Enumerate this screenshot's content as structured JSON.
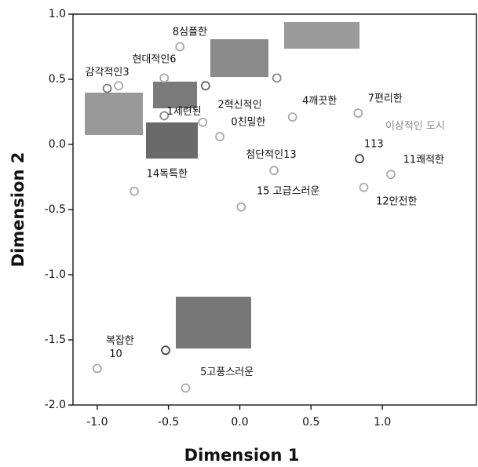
{
  "chart_data": {
    "type": "scatter",
    "x_label": "Dimension 1",
    "y_label": "Dimension 2",
    "xlim": [
      -1.17,
      1.66
    ],
    "ylim": [
      -2.0,
      1.0
    ],
    "xticks": [
      {
        "value": -1.0,
        "label": "-1.0"
      },
      {
        "value": -0.5,
        "label": "-0.5"
      },
      {
        "value": 0,
        "label": "0.0"
      },
      {
        "value": 0.5,
        "label": "0.5"
      },
      {
        "value": 1.0,
        "label": "1.0"
      }
    ],
    "yticks": [
      {
        "value": -2.0,
        "label": "-2.0"
      },
      {
        "value": -1.5,
        "label": "-1.5"
      },
      {
        "value": -1.0,
        "label": "-1.0"
      },
      {
        "value": -0.5,
        "label": "-0.5"
      },
      {
        "value": 0,
        "label": "0.0"
      },
      {
        "value": 0.5,
        "label": "0.5"
      },
      {
        "value": 1.0,
        "label": "1.0"
      }
    ],
    "x": [
      -0.42,
      -0.53,
      -0.93,
      -0.85,
      -0.24,
      0.26,
      -0.53,
      -0.26,
      -0.14,
      0.37,
      0.83,
      0.84,
      1.06,
      0.87,
      0.24,
      0.01,
      -0.74,
      -0.52,
      -1.0,
      -0.38
    ],
    "y": [
      0.75,
      0.51,
      0.43,
      0.45,
      0.45,
      0.51,
      0.22,
      0.17,
      0.06,
      0.21,
      0.24,
      -0.11,
      -0.23,
      -0.33,
      -0.2,
      -0.48,
      -0.36,
      -1.58,
      -1.72,
      -1.87
    ],
    "colors": [
      "#aaa",
      "#aaa",
      "#777",
      "#aaa",
      "#666",
      "#888",
      "#888",
      "#aaa",
      "#aaa",
      "#aaa",
      "#aaa",
      "#444",
      "#aaa",
      "#aaa",
      "#aaa",
      "#aaa",
      "#aaa",
      "#444",
      "#aaa",
      "#aaa"
    ],
    "annotations": [
      {
        "text": "8심플한",
        "x": -0.35,
        "y": 0.86
      },
      {
        "text": "현대적인6",
        "x": -0.6,
        "y": 0.65
      },
      {
        "text": "감각적인3",
        "x": -0.93,
        "y": 0.55
      },
      {
        "text": "2혁신적인",
        "x": 0.0,
        "y": 0.3
      },
      {
        "text": "1세련된",
        "x": -0.39,
        "y": 0.25
      },
      {
        "text": "0친밀한",
        "x": 0.06,
        "y": 0.17
      },
      {
        "text": "4깨끗한",
        "x": 0.56,
        "y": 0.33
      },
      {
        "text": "7편리한",
        "x": 1.02,
        "y": 0.35
      },
      {
        "text": "이상적인 도시",
        "x": 1.23,
        "y": 0.14,
        "color": "#888"
      },
      {
        "text": "113",
        "x": 0.94,
        "y": 0.0
      },
      {
        "text": "11쾌적한",
        "x": 1.29,
        "y": -0.12
      },
      {
        "text": "12안전한",
        "x": 1.1,
        "y": -0.44
      },
      {
        "text": "첨단적인13",
        "x": 0.22,
        "y": -0.08
      },
      {
        "text": "15 고급스러운",
        "x": 0.34,
        "y": -0.36
      },
      {
        "text": "14독특한",
        "x": -0.51,
        "y": -0.23
      },
      {
        "text": "복잡한",
        "x": -0.84,
        "y": -1.51
      },
      {
        "text": "10",
        "x": -0.87,
        "y": -1.61
      },
      {
        "text": "5고풍스러운",
        "x": -0.09,
        "y": -1.75
      }
    ]
  }
}
